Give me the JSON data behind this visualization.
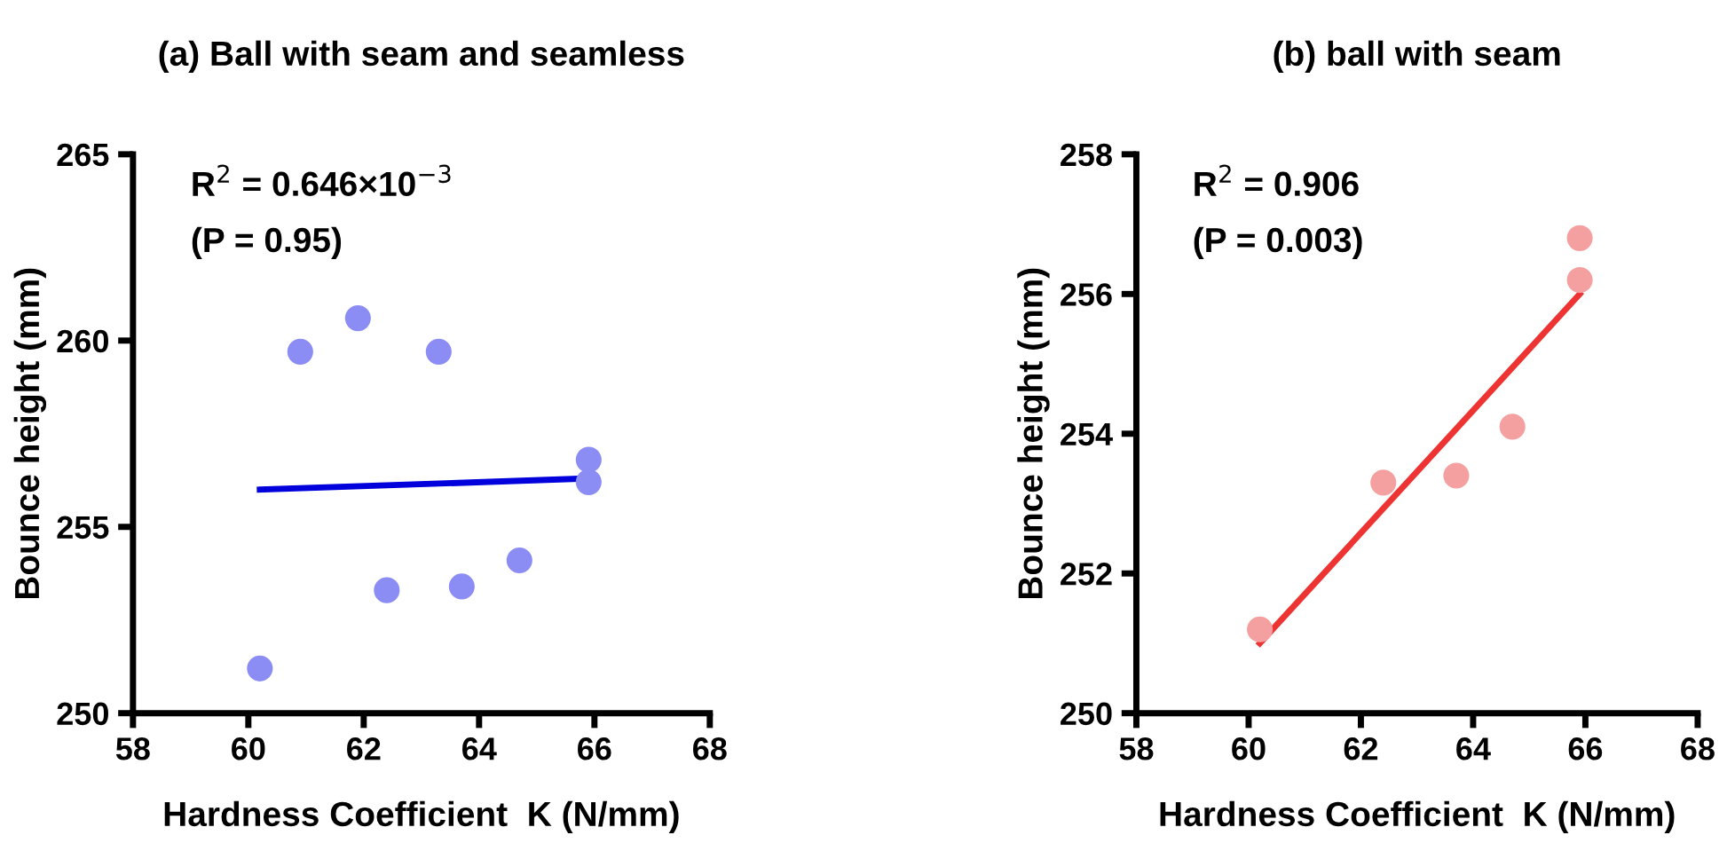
{
  "chart_data": [
    {
      "type": "scatter",
      "title": "(a) Ball with seam and seamless",
      "xlabel": "Hardness Coefficient  K (N/mm)",
      "ylabel": "Bounce height (mm)",
      "annotations": [
        "R$^{2}$ = 0.646×10$^{−3}$",
        "(P = 0.95)"
      ],
      "xlim": [
        58,
        68
      ],
      "xticks": [
        58,
        60,
        62,
        64,
        66,
        68
      ],
      "ylim": [
        250,
        265
      ],
      "yticks": [
        250,
        255,
        260,
        265
      ],
      "grid": false,
      "legend": false,
      "series": [
        {
          "marker": "circle",
          "color": "#8c8cf5",
          "x": [
            60.2,
            60.9,
            61.9,
            62.4,
            63.3,
            63.7,
            64.7,
            65.9,
            65.9
          ],
          "values": [
            251.2,
            259.7,
            260.6,
            253.3,
            259.7,
            253.4,
            254.1,
            256.8,
            256.2
          ]
        },
        {
          "type": "line",
          "color": "#0000dd",
          "x": [
            60.2,
            65.9
          ],
          "values": [
            256.0,
            256.3
          ]
        }
      ]
    },
    {
      "type": "scatter",
      "title": "(b) ball with seam",
      "xlabel": "Hardness Coefficient  K (N/mm)",
      "ylabel": "Bounce height (mm)",
      "annotations": [
        "R$^{2}$ = 0.906",
        "(P = 0.003)"
      ],
      "xlim": [
        58,
        68
      ],
      "xticks": [
        58,
        60,
        62,
        64,
        66,
        68
      ],
      "ylim": [
        250,
        258
      ],
      "yticks": [
        250,
        252,
        254,
        256,
        258
      ],
      "grid": false,
      "legend": false,
      "series": [
        {
          "marker": "circle",
          "color": "#f5a0a0",
          "x": [
            60.2,
            62.4,
            63.7,
            64.7,
            65.9,
            65.9
          ],
          "values": [
            251.2,
            253.3,
            253.4,
            254.1,
            256.8,
            256.2
          ]
        },
        {
          "type": "line",
          "color": "#ee3333",
          "x": [
            60.2,
            65.9
          ],
          "values": [
            251.0,
            256.0
          ]
        }
      ]
    }
  ]
}
